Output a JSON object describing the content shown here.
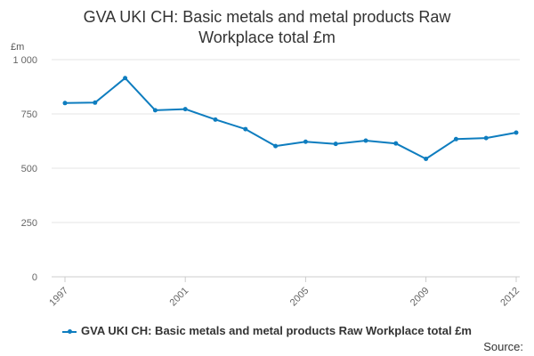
{
  "chart_data": {
    "type": "line",
    "title_lines": [
      "GVA UKI CH: Basic metals and metal products Raw",
      "Workplace total £m"
    ],
    "ylabel": "£m",
    "xlabel": "",
    "ylim": [
      0,
      1000
    ],
    "yticks": [
      0,
      250,
      500,
      750,
      1000
    ],
    "ytick_labels": [
      "0",
      "250",
      "500",
      "750",
      "1 000"
    ],
    "xlim": [
      1997,
      2012
    ],
    "xticks": [
      1997,
      2001,
      2005,
      2009,
      2012
    ],
    "xtick_labels": [
      "1997",
      "2001",
      "2005",
      "2009",
      "2012"
    ],
    "grid": true,
    "legend_position": "bottom",
    "series": [
      {
        "name": "GVA UKI CH: Basic metals and metal products Raw Workplace total £m",
        "color": "#0e7dbf",
        "x": [
          1997,
          1998,
          1999,
          2000,
          2001,
          2002,
          2003,
          2004,
          2005,
          2006,
          2007,
          2008,
          2009,
          2010,
          2011,
          2012
        ],
        "values": [
          800,
          802,
          915,
          767,
          772,
          724,
          680,
          602,
          622,
          612,
          627,
          614,
          543,
          634,
          639,
          664
        ]
      }
    ]
  },
  "source_label": "Source:"
}
